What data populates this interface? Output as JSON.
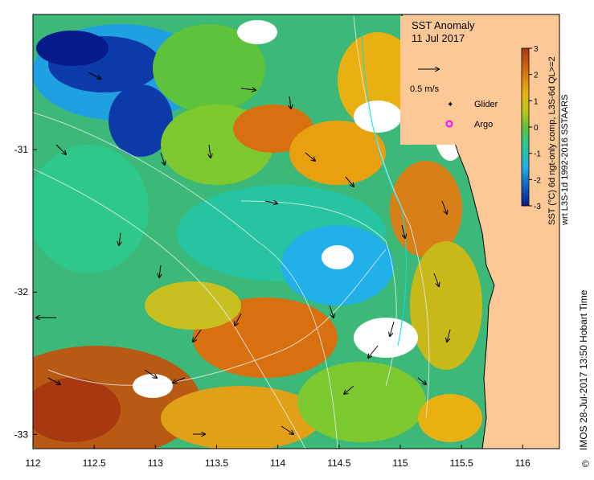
{
  "map": {
    "title": "SST Anomaly",
    "date": "11 Jul 2017",
    "region": {
      "lon_min": 112,
      "lon_max": 116.3,
      "lat_min": -33.1,
      "lat_max": -30.05
    },
    "x_ticks": [
      "112",
      "112.5",
      "113",
      "113.5",
      "114",
      "114.5",
      "115",
      "115.5",
      "116"
    ],
    "y_ticks": [
      "-31",
      "-32",
      "-33"
    ],
    "land_color": "#fcc896",
    "velocity_scale_label": "0.5 m/s",
    "legend": {
      "glider_label": "Glider",
      "argo_label": "Argo",
      "marker_color": "#ff00ff"
    }
  },
  "colorbar": {
    "min": -3,
    "max": 3,
    "tick_labels": [
      "3",
      "2",
      "1",
      "0",
      "-1",
      "-2",
      "-3"
    ],
    "label_line1": "SST (°C) 6d ngt-only comp, L3S-6d QL>=2",
    "label_line2": "wrt L3S-1d 1992-2016 SSTAARS",
    "colors": [
      "#081a8c",
      "#1060c8",
      "#22b0e8",
      "#2ec88a",
      "#5ec23a",
      "#b8c818",
      "#e8b010",
      "#d87010",
      "#a83810"
    ]
  },
  "credit": "IMOS 28-Jul-2017 13:50 Hobart Time",
  "copyright_symbol": "©"
}
